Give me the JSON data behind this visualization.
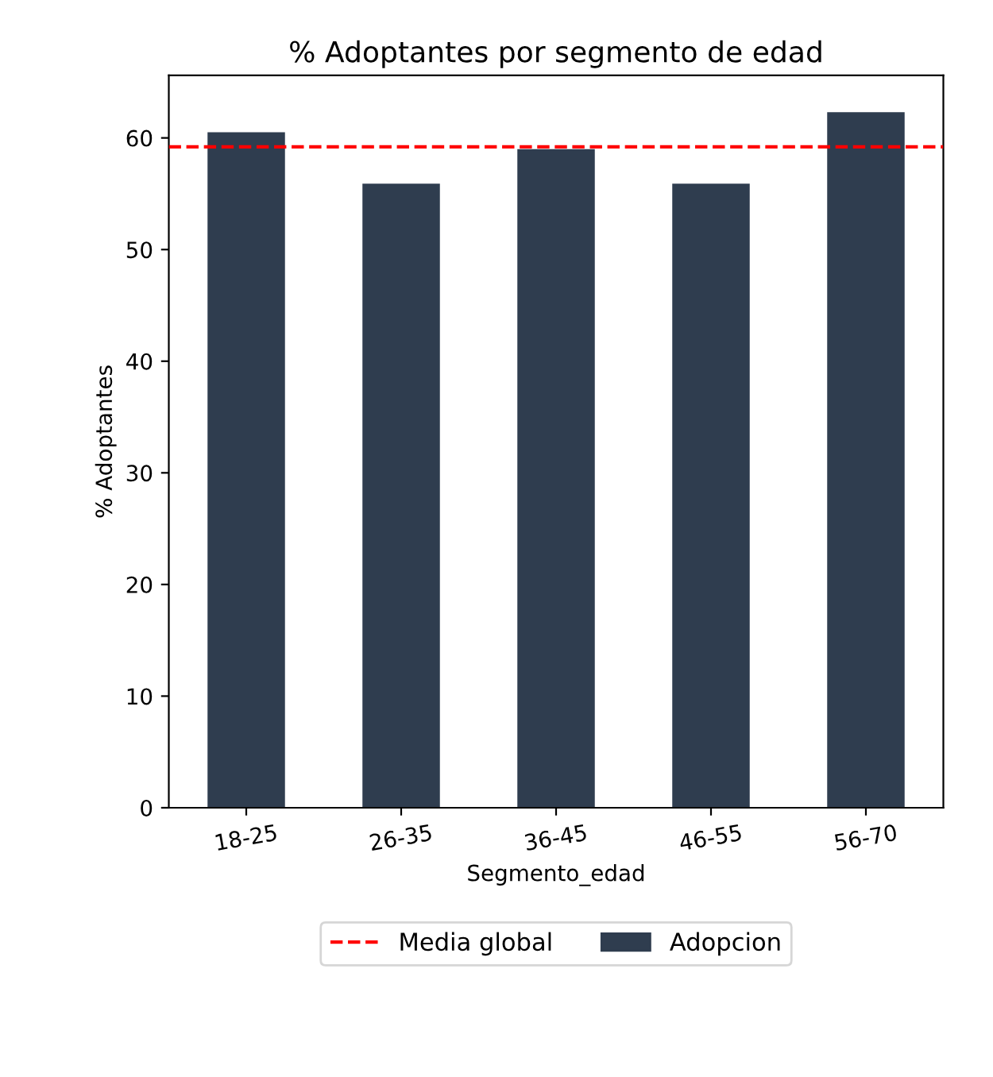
{
  "chart_data": {
    "type": "bar",
    "title": "% Adoptantes por segmento de edad",
    "xlabel": "Segmento_edad",
    "ylabel": "% Adoptantes",
    "categories": [
      "18-25",
      "26-35",
      "36-45",
      "46-55",
      "56-70"
    ],
    "series": [
      {
        "name": "Adopcion",
        "color": "#2f3d4f",
        "values": [
          60.5,
          55.9,
          59.0,
          55.9,
          62.3
        ]
      }
    ],
    "ylim": [
      0,
      65.6
    ],
    "yticks": [
      0,
      10,
      20,
      30,
      40,
      50,
      60
    ],
    "ref_lines": [
      {
        "axis": "y",
        "value": 59.2,
        "label": "Media global",
        "color": "#ff0000",
        "line_style": "dashed"
      }
    ],
    "legend": "bottom",
    "grid": false
  }
}
